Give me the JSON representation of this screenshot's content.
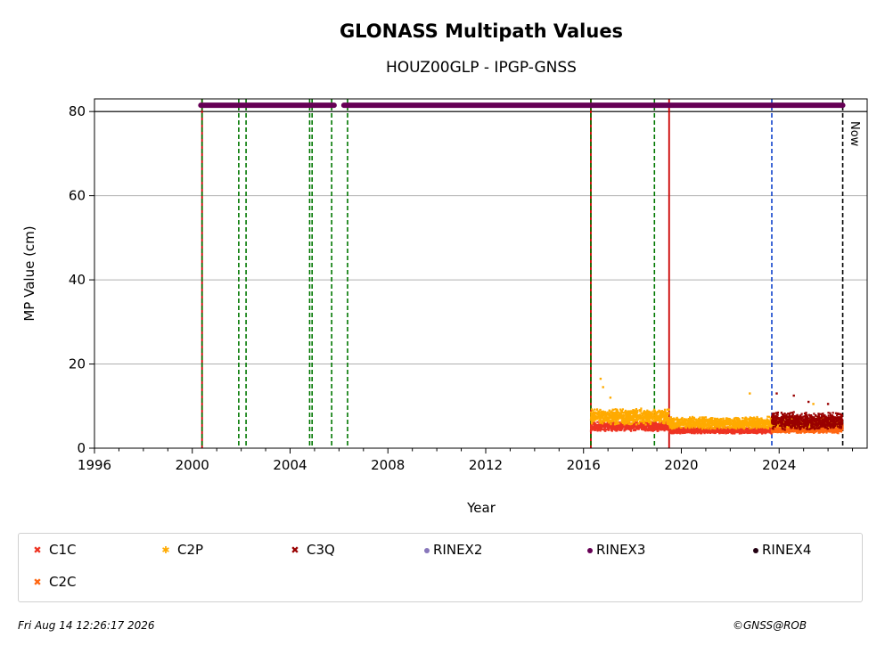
{
  "chart_data": {
    "type": "scatter",
    "title": "GLONASS Multipath Values",
    "subtitle": "HOUZ00GLP - IPGP-GNSS",
    "xlabel": "Year",
    "ylabel": "MP Value (cm)",
    "xlim": [
      1996,
      2027.6
    ],
    "ylim": [
      0,
      83
    ],
    "xticks": [
      "1996",
      "2000",
      "2004",
      "2008",
      "2012",
      "2016",
      "2020",
      "2024"
    ],
    "yticks": [
      "0",
      "20",
      "40",
      "60",
      "80"
    ],
    "grid": "y",
    "now_label": "Now",
    "now_year": 2026.6,
    "reference_line_y": 80,
    "event_lines": {
      "green_dashed": [
        2000.4,
        2001.9,
        2002.2,
        2004.8,
        2004.9,
        2005.7,
        2006.35,
        2016.3,
        2018.9
      ],
      "red_solid": [
        2000.4,
        2016.3,
        2019.5
      ],
      "blue_dashed": [
        2023.7
      ]
    },
    "rinex_availability": {
      "y": 81.5,
      "segments": [
        [
          2000.35,
          2004.7
        ],
        [
          2004.75,
          2005.8
        ],
        [
          2006.2,
          2026.6
        ]
      ]
    },
    "series": [
      {
        "name": "C1C",
        "marker": "x",
        "color": "#ee3322",
        "segments": [
          {
            "x": [
              2016.3,
              2019.5
            ],
            "center": 5.2,
            "spread": 1.2
          },
          {
            "x": [
              2019.5,
              2023.7
            ],
            "center": 4.2,
            "spread": 0.8
          },
          {
            "x": [
              2023.7,
              2026.6
            ],
            "center": 4.8,
            "spread": 1.0
          }
        ]
      },
      {
        "name": "C2C",
        "marker": "x",
        "color": "#ff6611",
        "segments": [
          {
            "x": [
              2023.7,
              2026.6
            ],
            "center": 4.5,
            "spread": 1.0
          }
        ]
      },
      {
        "name": "C2P",
        "marker": "*",
        "color": "#ffaa00",
        "segments": [
          {
            "x": [
              2016.3,
              2019.5
            ],
            "center": 7.5,
            "spread": 2.0
          },
          {
            "x": [
              2019.5,
              2023.7
            ],
            "center": 6.0,
            "spread": 1.5
          },
          {
            "x": [
              2023.7,
              2026.6
            ],
            "center": 6.0,
            "spread": 1.2
          }
        ],
        "outliers": [
          [
            2016.7,
            16.5
          ],
          [
            2016.8,
            14.5
          ],
          [
            2017.1,
            12.0
          ],
          [
            2022.8,
            13.0
          ],
          [
            2025.4,
            10.5
          ]
        ]
      },
      {
        "name": "C3Q",
        "marker": "x",
        "color": "#990000",
        "segments": [
          {
            "x": [
              2023.7,
              2026.6
            ],
            "center": 6.5,
            "spread": 2.2
          }
        ],
        "outliers": [
          [
            2023.9,
            13.0
          ],
          [
            2024.6,
            12.5
          ],
          [
            2025.2,
            11.0
          ],
          [
            2026.0,
            10.5
          ]
        ]
      },
      {
        "name": "RINEX2",
        "marker": "o",
        "color": "#8877bb"
      },
      {
        "name": "RINEX3",
        "marker": "o",
        "color": "#660055"
      },
      {
        "name": "RINEX4",
        "marker": "o",
        "color": "#220011"
      }
    ]
  },
  "legend": [
    {
      "label": "C1C",
      "marker": "x",
      "color": "#ee3322"
    },
    {
      "label": "C2P",
      "marker": "*",
      "color": "#ffaa00"
    },
    {
      "label": "C3Q",
      "marker": "x",
      "color": "#990000"
    },
    {
      "label": "RINEX2",
      "marker": "o",
      "color": "#8877bb"
    },
    {
      "label": "RINEX3",
      "marker": "o",
      "color": "#660055"
    },
    {
      "label": "RINEX4",
      "marker": "o",
      "color": "#220011"
    },
    {
      "label": "C2C",
      "marker": "x",
      "color": "#ff6611"
    }
  ],
  "footer": {
    "timestamp": "Fri Aug 14 12:26:17 2026",
    "credit": "©GNSS@ROB"
  }
}
